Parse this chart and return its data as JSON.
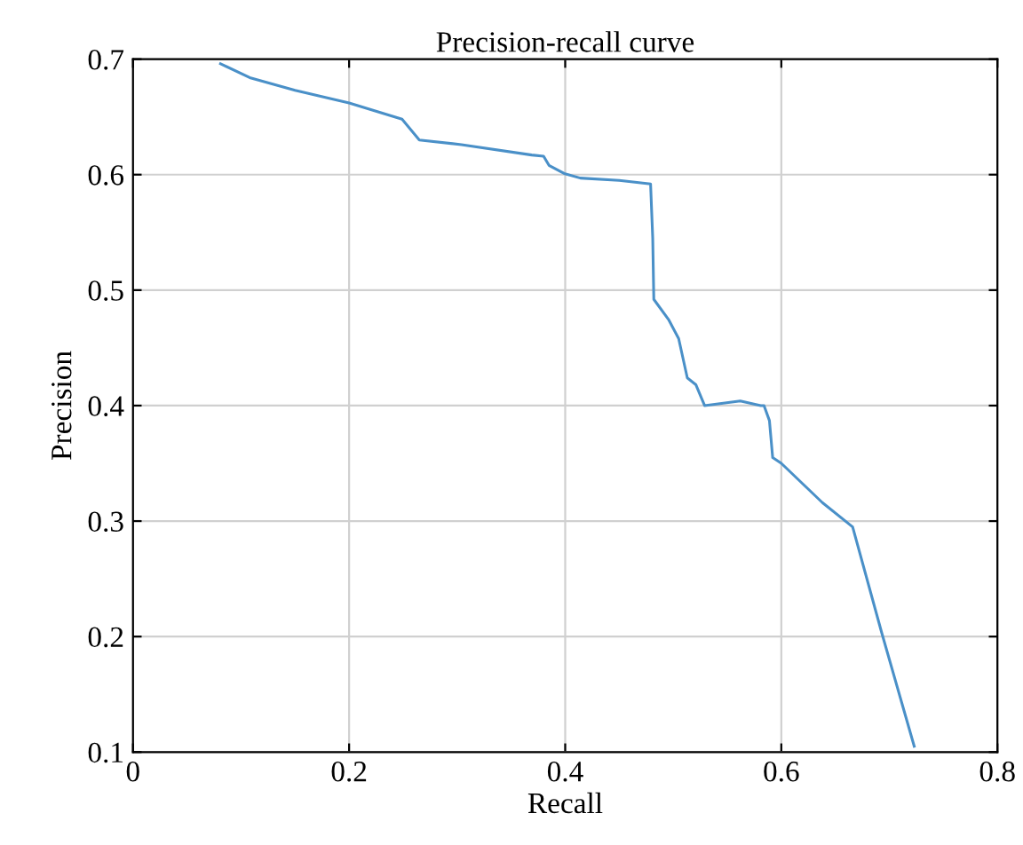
{
  "chart_data": {
    "type": "line",
    "title": "Precision-recall curve",
    "xlabel": "Recall",
    "ylabel": "Precision",
    "series": [
      {
        "color": "#4a90c8",
        "x": [
          0.081,
          0.108,
          0.15,
          0.2,
          0.249,
          0.257,
          0.265,
          0.304,
          0.369,
          0.38,
          0.385,
          0.399,
          0.414,
          0.45,
          0.479,
          0.481,
          0.482,
          0.496,
          0.505,
          0.513,
          0.521,
          0.529,
          0.562,
          0.581,
          0.584,
          0.589,
          0.592,
          0.6,
          0.638,
          0.666,
          0.693,
          0.723
        ],
        "values": [
          0.696,
          0.684,
          0.673,
          0.662,
          0.648,
          0.639,
          0.63,
          0.626,
          0.617,
          0.616,
          0.608,
          0.601,
          0.597,
          0.595,
          0.592,
          0.545,
          0.492,
          0.474,
          0.458,
          0.424,
          0.418,
          0.4,
          0.404,
          0.4,
          0.4,
          0.387,
          0.355,
          0.35,
          0.316,
          0.295,
          0.203,
          0.105
        ]
      }
    ],
    "xlim": [
      0,
      0.8
    ],
    "ylim": [
      0.1,
      0.7
    ],
    "xticks": [
      0,
      0.2,
      0.4,
      0.6,
      0.8
    ],
    "yticks": [
      0.1,
      0.2,
      0.3,
      0.4,
      0.5,
      0.6,
      0.7
    ],
    "grid": true,
    "marker": "none",
    "line_style": "solid"
  }
}
